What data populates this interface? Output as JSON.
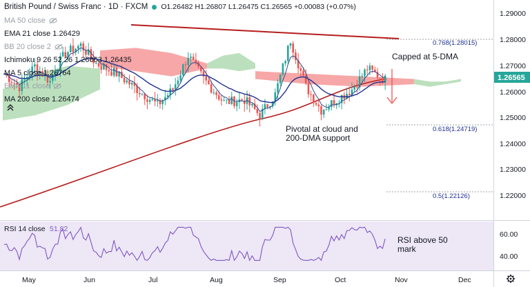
{
  "header": {
    "symbol": "British Pound / Swiss Franc · 1D · FXCM",
    "ohlc": "O1.26482 H1.26807 L1.26475 C1.26565 +0.00083 (+0.07%)"
  },
  "legend": [
    {
      "label": "MA 50 close",
      "value": "",
      "color": "#9aa0a8",
      "hidden": true
    },
    {
      "label": "EMA 21 close",
      "value": "1.26429",
      "color": "#1e2f8f",
      "hidden": false
    },
    {
      "label": "BB 20 close 2",
      "value": "",
      "color": "#9aa0a8",
      "hidden": true
    },
    {
      "label": "Ichimoku 9 26 52 26",
      "value": "1.26663  1.26435",
      "color": "#131722",
      "hidden": false
    },
    {
      "label": "MA 5 close",
      "value": "1.26764",
      "color": "#131722",
      "hidden": false
    },
    {
      "label": "EMA 11 close",
      "value": "",
      "color": "#9aa0a8",
      "hidden": true
    },
    {
      "label": "MA 200 close",
      "value": "1.26474",
      "color": "#131722",
      "hidden": false
    }
  ],
  "price_axis": {
    "ticks": [
      "1.29000",
      "1.28000",
      "1.27000",
      "1.26000",
      "1.25000",
      "1.24000",
      "1.23000",
      "1.22000"
    ],
    "current": "1.26565",
    "current_color": "#26a69a"
  },
  "time_axis": [
    "May",
    "Jun",
    "Jul",
    "Aug",
    "Sep",
    "Oct",
    "Nov",
    "Dec"
  ],
  "fib_levels": [
    "0.768(1.28015)",
    "0.618(1.24719)",
    "0.5(1.22126)"
  ],
  "annotations": {
    "capped": "Capped at 5-DMA",
    "pivotal_line1": "Pivotal at cloud and",
    "pivotal_line2": "200-DMA support",
    "rsi_note_line1": "RSI above 50",
    "rsi_note_line2": "mark"
  },
  "rsi": {
    "label": "RSI 14 close",
    "value": "51.82",
    "ticks": [
      "60.00",
      "40.00"
    ]
  },
  "colors": {
    "up": "#26a69a",
    "down": "#ef5350",
    "ma200": "#b71c1c",
    "ema21": "#1e2f8f",
    "ma5": "#2f4f8f",
    "cloud_bull": "#a5d6a7",
    "cloud_bear": "#f48a8a",
    "trendline": "#b71c1c",
    "rsi": "#7e57c2",
    "rsi_bg": "#ede7f6"
  }
}
